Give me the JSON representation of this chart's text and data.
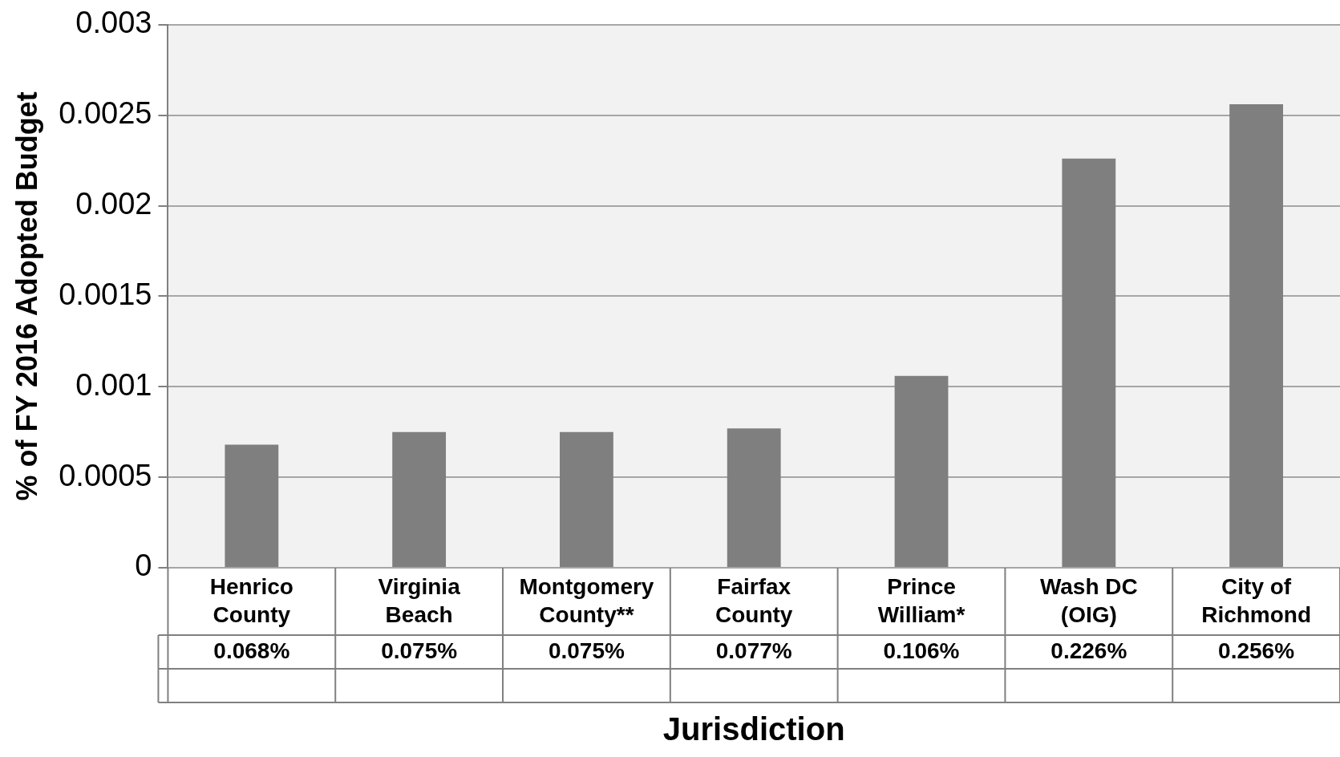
{
  "chart_data": {
    "type": "bar",
    "xlabel": "Jurisdiction",
    "ylabel": "% of FY 2016 Adopted Budget",
    "categories": [
      "Henrico County",
      "Virginia Beach",
      "Montgomery County**",
      "Fairfax County",
      "Prince William*",
      "Wash DC (OIG)",
      "City of Richmond"
    ],
    "values": [
      0.00068,
      0.00075,
      0.00075,
      0.00077,
      0.00106,
      0.00226,
      0.00256
    ],
    "value_labels": [
      "0.068%",
      "0.075%",
      "0.075%",
      "0.077%",
      "0.106%",
      "0.226%",
      "0.256%"
    ],
    "color": "#7f7f7f",
    "ylim": [
      0,
      0.003
    ],
    "yticks": [
      0,
      0.0005,
      0.001,
      0.0015,
      0.002,
      0.0025,
      0.003
    ],
    "grid": "y",
    "legend": false
  }
}
